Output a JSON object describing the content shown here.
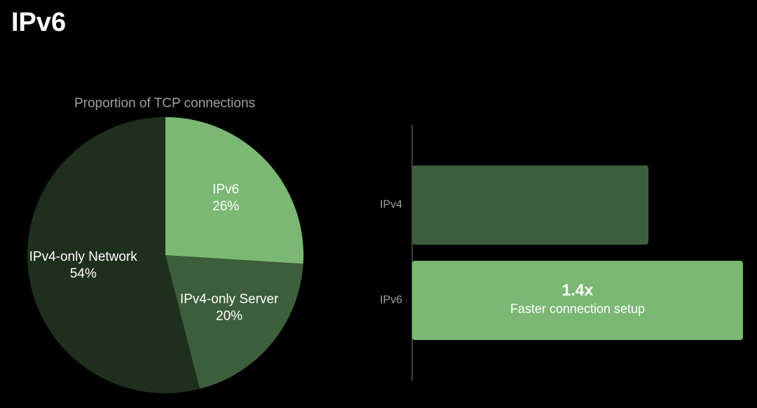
{
  "title": "IPv6",
  "chart_data": [
    {
      "type": "pie",
      "title": "Proportion of TCP connections",
      "categories": [
        "IPv6",
        "IPv4-only Server",
        "IPv4-only Network"
      ],
      "values": [
        26,
        20,
        54
      ],
      "value_labels": [
        "26%",
        "20%",
        "54%"
      ],
      "colors": [
        "#7ab874",
        "#3d5e3a",
        "#1f2f1e"
      ]
    },
    {
      "type": "hbar",
      "categories": [
        "IPv4",
        "IPv6"
      ],
      "values": [
        1,
        1.4
      ],
      "value_labels": [
        null,
        "1.4x"
      ],
      "colors": [
        "#3d5e3a",
        "#7ab874"
      ],
      "xlim": [
        0,
        1.4
      ],
      "annotation": "Faster connection setup"
    }
  ]
}
